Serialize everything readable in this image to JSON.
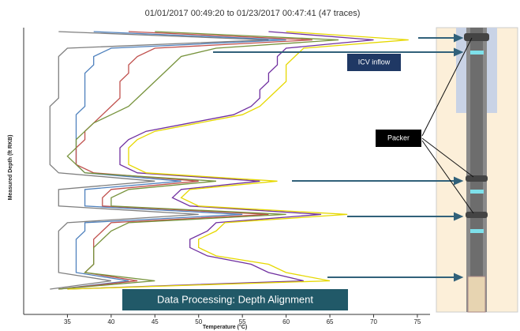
{
  "chart_data": {
    "type": "line",
    "title": "01/01/2017 00:49:20 to 01/23/2017 00:47:41 (47 traces)",
    "x_label": "Temperature (°C)",
    "y_label": "Measured Depth (ft RKB)",
    "categories": [
      null,
      null,
      null,
      null,
      null,
      null,
      null,
      null,
      null,
      null,
      null,
      null,
      null,
      null,
      null,
      null,
      null,
      null,
      null,
      null,
      null,
      null,
      null,
      null,
      null,
      null,
      null,
      null,
      null,
      null,
      null,
      null
    ],
    "xlim": [
      30,
      76
    ],
    "xticks": [
      35,
      40,
      45,
      50,
      55,
      60,
      65,
      70,
      75
    ],
    "series": [
      {
        "color": "#7f7f7f",
        "values": [
          34,
          58,
          35,
          34,
          34,
          34,
          34,
          34,
          34,
          33,
          33,
          33,
          33,
          33,
          33,
          33,
          33,
          34,
          45,
          34,
          34,
          34,
          50,
          35,
          34,
          34,
          34,
          34,
          34,
          34,
          40,
          33
        ]
      },
      {
        "color": "#4f81bd",
        "values": [
          38,
          60,
          40,
          38,
          38,
          37,
          37,
          37,
          37,
          37,
          36,
          36,
          36,
          36,
          36,
          36,
          36,
          37,
          48,
          37,
          37,
          37,
          55,
          37,
          37,
          36,
          36,
          36,
          36,
          36,
          42,
          34
        ]
      },
      {
        "color": "#c0504d",
        "values": [
          42,
          63,
          45,
          43,
          42,
          42,
          41,
          41,
          41,
          40,
          39,
          38,
          37,
          37,
          36,
          36,
          36,
          38,
          50,
          40,
          39,
          39,
          58,
          40,
          39,
          38,
          38,
          38,
          38,
          37,
          43,
          34
        ]
      },
      {
        "color": "#77933c",
        "values": [
          45,
          66,
          52,
          48,
          47,
          46,
          45,
          44,
          43,
          42,
          40,
          38,
          37,
          36,
          36,
          35,
          36,
          37,
          52,
          42,
          40,
          40,
          60,
          42,
          40,
          39,
          38,
          38,
          38,
          37,
          45,
          34
        ]
      },
      {
        "color": "#7030a0",
        "values": [
          58,
          70,
          60,
          59,
          59,
          58,
          58,
          57,
          57,
          56,
          54,
          49,
          44,
          42,
          41,
          41,
          41,
          43,
          57,
          48,
          47,
          49,
          64,
          52,
          51,
          49,
          49,
          51,
          56,
          58,
          62,
          35
        ]
      },
      {
        "color": "#e6d800",
        "values": [
          60,
          74,
          62,
          61,
          60,
          60,
          60,
          59,
          58,
          57,
          55,
          50,
          45,
          43,
          42,
          42,
          42,
          44,
          59,
          49,
          48,
          50,
          67,
          53,
          52,
          50,
          50,
          52,
          58,
          60,
          65,
          35
        ]
      }
    ],
    "annotations": [
      "ICV inflow",
      "Packer",
      "Data Processing: Depth Alignment"
    ]
  }
}
